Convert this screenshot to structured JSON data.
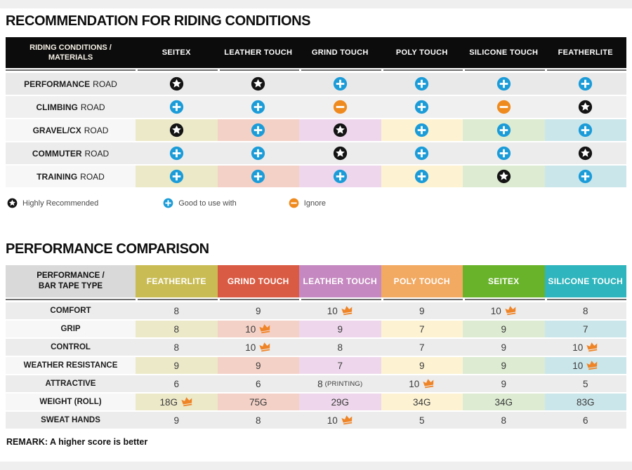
{
  "colors": {
    "icon_blue": "#1b9cd8",
    "icon_orange": "#ee8a1e",
    "icon_black": "#141414",
    "crown_orange": "#ef8427",
    "header_black": "#0c0c0c",
    "tints": [
      "#ece9c9",
      "#f4d1c7",
      "#eed7ec",
      "#fdf3d3",
      "#dcebd1",
      "#cbe6ea"
    ],
    "t1_row_grays": [
      "#e9e9e9",
      "#f0f0f0",
      "#f7f7f7",
      "#ececec",
      "#f7f7f7"
    ],
    "t2_row_gray": "#ececec",
    "tinted_label_bg": "#f7f7f7"
  },
  "chart_data": [
    {
      "type": "table",
      "title": "RECOMMENDATION FOR RIDING CONDITIONS",
      "corner_line1": "RIDING CONDITIONS /",
      "corner_line2": "MATERIALS",
      "columns": [
        "SEITEX",
        "LEATHER TOUCH",
        "GRIND TOUCH",
        "POLY TOUCH",
        "SILICONE TOUCH",
        "FEATHERLITE"
      ],
      "icon_meanings": {
        "star": "Highly Recommended",
        "plus": "Good to use with",
        "minus": "Ignore"
      },
      "rows": [
        {
          "label_bold": "PERFORMANCE",
          "label_rest": "ROAD",
          "tinted": false,
          "values": [
            "star",
            "star",
            "plus",
            "plus",
            "plus",
            "plus"
          ]
        },
        {
          "label_bold": "CLIMBING",
          "label_rest": "ROAD",
          "tinted": false,
          "values": [
            "plus",
            "plus",
            "minus",
            "plus",
            "minus",
            "star"
          ]
        },
        {
          "label_bold": "GRAVEL/CX",
          "label_rest": "ROAD",
          "tinted": true,
          "values": [
            "star",
            "plus",
            "star",
            "plus",
            "plus",
            "plus"
          ]
        },
        {
          "label_bold": "COMMUTER",
          "label_rest": "ROAD",
          "tinted": false,
          "values": [
            "plus",
            "plus",
            "star",
            "plus",
            "plus",
            "star"
          ]
        },
        {
          "label_bold": "TRAINING",
          "label_rest": "ROAD",
          "tinted": true,
          "values": [
            "plus",
            "plus",
            "plus",
            "plus",
            "star",
            "plus"
          ]
        }
      ],
      "legend": [
        {
          "icon": "star",
          "label": "Highly Recommended"
        },
        {
          "icon": "plus",
          "label": "Good to use with"
        },
        {
          "icon": "minus",
          "label": "Ignore"
        }
      ]
    },
    {
      "type": "table",
      "title": "PERFORMANCE COMPARISON",
      "corner_line1": "PERFORMANCE /",
      "corner_line2": "BAR TAPE TYPE",
      "columns": [
        {
          "name": "FEATHERLITE",
          "color": "#c9bc55"
        },
        {
          "name": "GRIND TOUCH",
          "color": "#d95b43"
        },
        {
          "name": "LEATHER TOUCH",
          "color": "#c588c0"
        },
        {
          "name": "POLY TOUCH",
          "color": "#f2a961"
        },
        {
          "name": "SEITEX",
          "color": "#69b32b"
        },
        {
          "name": "SILICONE TOUCH",
          "color": "#2fb5bd"
        }
      ],
      "rows": [
        {
          "label": "COMFORT",
          "tinted": false,
          "values": [
            {
              "v": "8"
            },
            {
              "v": "9"
            },
            {
              "v": "10",
              "crown": true
            },
            {
              "v": "9"
            },
            {
              "v": "10",
              "crown": true
            },
            {
              "v": "8"
            }
          ]
        },
        {
          "label": "GRIP",
          "tinted": true,
          "values": [
            {
              "v": "8"
            },
            {
              "v": "10",
              "crown": true
            },
            {
              "v": "9"
            },
            {
              "v": "7"
            },
            {
              "v": "9"
            },
            {
              "v": "7"
            }
          ]
        },
        {
          "label": "CONTROL",
          "tinted": false,
          "values": [
            {
              "v": "8"
            },
            {
              "v": "10",
              "crown": true
            },
            {
              "v": "8"
            },
            {
              "v": "7"
            },
            {
              "v": "9"
            },
            {
              "v": "10",
              "crown": true
            }
          ]
        },
        {
          "label": "WEATHER RESISTANCE",
          "tinted": true,
          "values": [
            {
              "v": "9"
            },
            {
              "v": "9"
            },
            {
              "v": "7"
            },
            {
              "v": "9"
            },
            {
              "v": "9"
            },
            {
              "v": "10",
              "crown": true
            }
          ]
        },
        {
          "label": "ATTRACTIVE",
          "tinted": false,
          "values": [
            {
              "v": "6"
            },
            {
              "v": "6"
            },
            {
              "v": "8",
              "note": "(PRINTING)"
            },
            {
              "v": "10",
              "crown": true
            },
            {
              "v": "9"
            },
            {
              "v": "5"
            }
          ]
        },
        {
          "label": "WEIGHT (ROLL)",
          "tinted": true,
          "values": [
            {
              "v": "18G",
              "crown": true
            },
            {
              "v": "75G"
            },
            {
              "v": "29G"
            },
            {
              "v": "34G"
            },
            {
              "v": "34G"
            },
            {
              "v": "83G"
            }
          ]
        },
        {
          "label": "SWEAT HANDS",
          "tinted": false,
          "values": [
            {
              "v": "9"
            },
            {
              "v": "8"
            },
            {
              "v": "10",
              "crown": true
            },
            {
              "v": "5"
            },
            {
              "v": "8"
            },
            {
              "v": "6"
            }
          ]
        }
      ],
      "remark": "REMARK: A higher score is better"
    }
  ]
}
